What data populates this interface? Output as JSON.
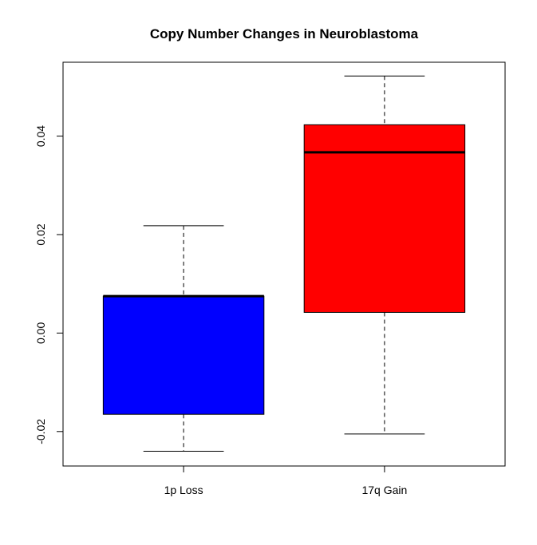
{
  "chart_data": {
    "type": "boxplot",
    "title": "Copy Number Changes in Neuroblastoma",
    "xlabel": "",
    "ylabel": "",
    "ylim": [
      -0.027,
      0.055
    ],
    "yticks": [
      -0.02,
      0.0,
      0.02,
      0.04
    ],
    "ytick_labels": [
      "-0.02",
      "0.00",
      "0.02",
      "0.04"
    ],
    "categories": [
      "1p Loss",
      "17q Gain"
    ],
    "boxes": [
      {
        "category": "1p Loss",
        "whisker_low": -0.024,
        "q1": -0.0165,
        "median": 0.0075,
        "q3": 0.0075,
        "whisker_high": 0.0218,
        "color": "#0000FF"
      },
      {
        "category": "17q Gain",
        "whisker_low": -0.0205,
        "q1": 0.0042,
        "median": 0.0367,
        "q3": 0.0423,
        "whisker_high": 0.0522,
        "color": "#FF0000"
      }
    ],
    "grid": false,
    "legend": "none"
  }
}
